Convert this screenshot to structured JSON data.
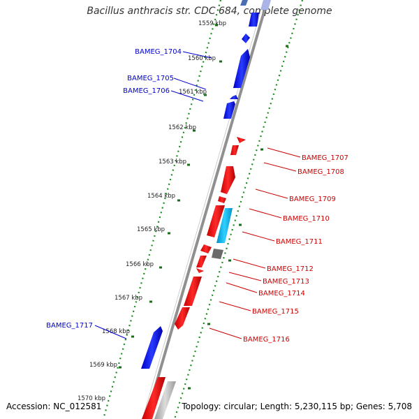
{
  "title": "Bacillus anthracis str. CDC 684, complete genome",
  "footer": {
    "accession": "Accession: NC_012581",
    "summary": "Topology: circular; Length: 5,230,115 bp; Genes: 5,708"
  },
  "scale_ticks": [
    "1559 kbp",
    "1560 kbp",
    "1561 kbp",
    "1562 kbp",
    "1563 kbp",
    "1564 kbp",
    "1565 kbp",
    "1566 kbp",
    "1567 kbp",
    "1568 kbp",
    "1569 kbp",
    "1570 kbp"
  ],
  "gene_labels": {
    "left": [
      "BAMEG_1704",
      "BAMEG_1705",
      "BAMEG_1706",
      "BAMEG_1717"
    ],
    "right": [
      "BAMEG_1707",
      "BAMEG_1708",
      "BAMEG_1709",
      "BAMEG_1710",
      "BAMEG_1711",
      "BAMEG_1712",
      "BAMEG_1713",
      "BAMEG_1714",
      "BAMEG_1715",
      "BAMEG_1716"
    ]
  },
  "colors": {
    "forward_strand": "#0000e6",
    "reverse_strand": "#e60000",
    "rna_feature": "#00b4e6",
    "other_feature": "#666666",
    "dotted_track": "#1a8c1a",
    "tick_mark": "#1a6e1a",
    "backbone": "#808080"
  }
}
